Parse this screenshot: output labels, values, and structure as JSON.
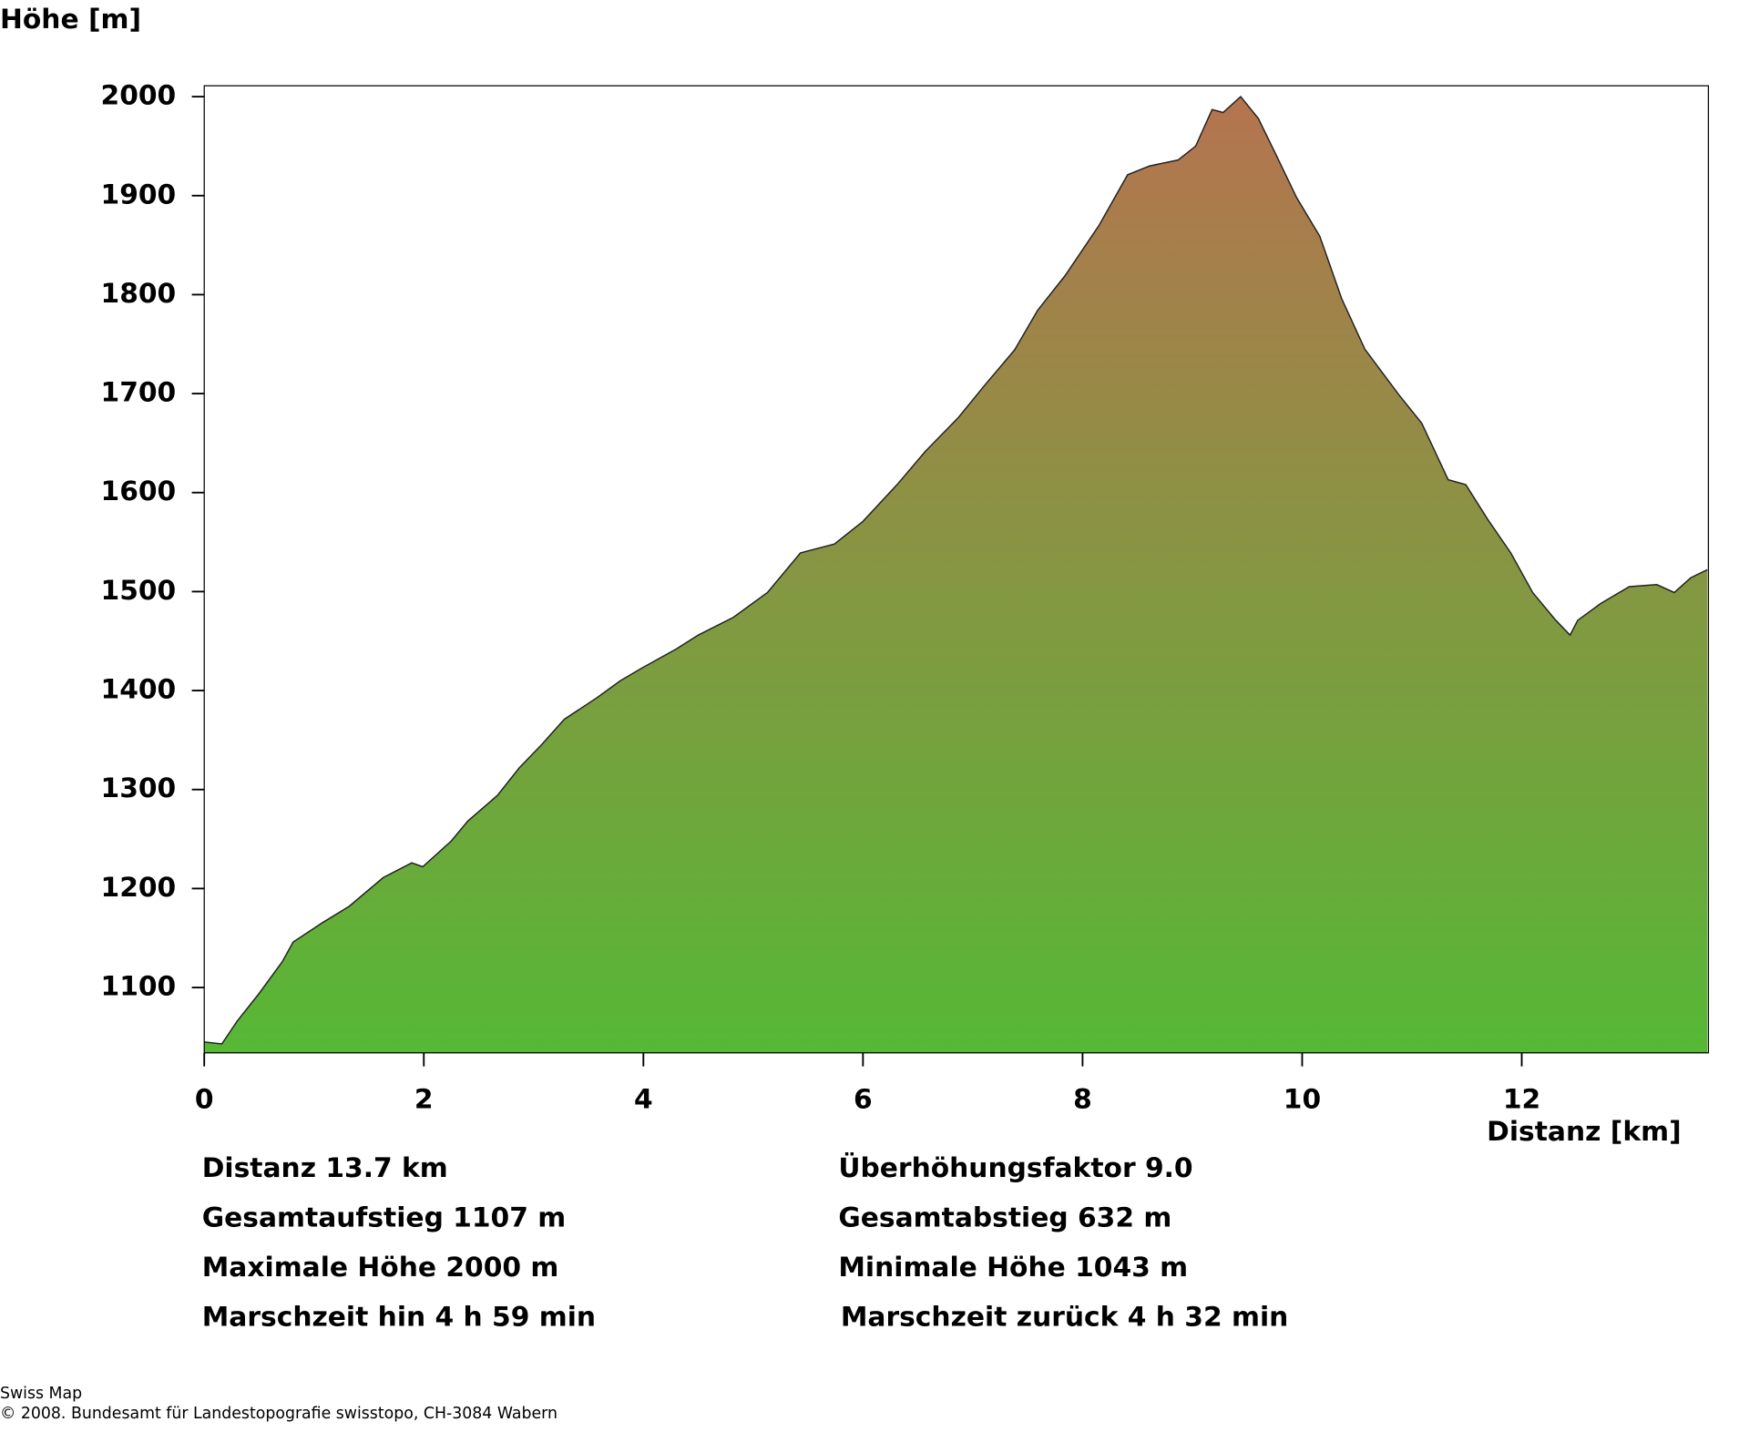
{
  "chart_data": {
    "type": "area",
    "y_axis_title": "Höhe [m]",
    "x_axis_title": "Distanz [km]",
    "x": [
      0,
      0.16,
      0.3,
      0.5,
      0.71,
      0.81,
      1.07,
      1.32,
      1.63,
      1.89,
      1.99,
      2.25,
      2.4,
      2.67,
      2.87,
      3.07,
      3.28,
      3.58,
      3.79,
      3.99,
      4.3,
      4.5,
      4.82,
      5.13,
      5.43,
      5.74,
      6.0,
      6.31,
      6.57,
      6.87,
      7.12,
      7.38,
      7.59,
      7.84,
      8.15,
      8.41,
      8.61,
      8.87,
      9.03,
      9.18,
      9.28,
      9.44,
      9.6,
      9.75,
      9.95,
      10.16,
      10.36,
      10.57,
      10.88,
      11.09,
      11.33,
      11.49,
      11.69,
      11.9,
      12.1,
      12.31,
      12.44,
      12.51,
      12.72,
      12.98,
      13.23,
      13.39,
      13.54,
      13.69
    ],
    "values": [
      1045,
      1043,
      1066,
      1094,
      1126,
      1146,
      1165,
      1182,
      1211,
      1226,
      1222,
      1248,
      1268,
      1294,
      1322,
      1345,
      1371,
      1393,
      1410,
      1423,
      1442,
      1456,
      1474,
      1499,
      1539,
      1548,
      1571,
      1608,
      1642,
      1676,
      1710,
      1744,
      1784,
      1819,
      1870,
      1921,
      1930,
      1936,
      1950,
      1987,
      1984,
      2000,
      1978,
      1944,
      1898,
      1859,
      1796,
      1745,
      1699,
      1670,
      1613,
      1608,
      1573,
      1539,
      1499,
      1471,
      1456,
      1471,
      1488,
      1505,
      1507,
      1499,
      1514,
      1522
    ],
    "color_top": "#b5744f",
    "color_bottom": "#56b835",
    "xlim": [
      0,
      13.7
    ],
    "ylim": [
      1034,
      2011
    ],
    "xticks": [
      0,
      2,
      4,
      6,
      8,
      10,
      12
    ],
    "yticks": [
      1100,
      1200,
      1300,
      1400,
      1500,
      1600,
      1700,
      1800,
      1900,
      2000
    ],
    "grid": false
  },
  "stats": {
    "left": [
      "Distanz 13.7 km",
      "Gesamtaufstieg  1107 m",
      "Maximale Höhe  2000 m",
      "Marschzeit hin  4 h 59 min"
    ],
    "right": [
      "Überhöhungsfaktor 9.0",
      "Gesamtabstieg  632 m",
      "Minimale Höhe  1043 m",
      "Marschzeit zurück  4 h 32 min"
    ]
  },
  "footer": [
    "Swiss Map",
    "© 2008. Bundesamt für Landestopografie swisstopo, CH-3084 Wabern"
  ]
}
